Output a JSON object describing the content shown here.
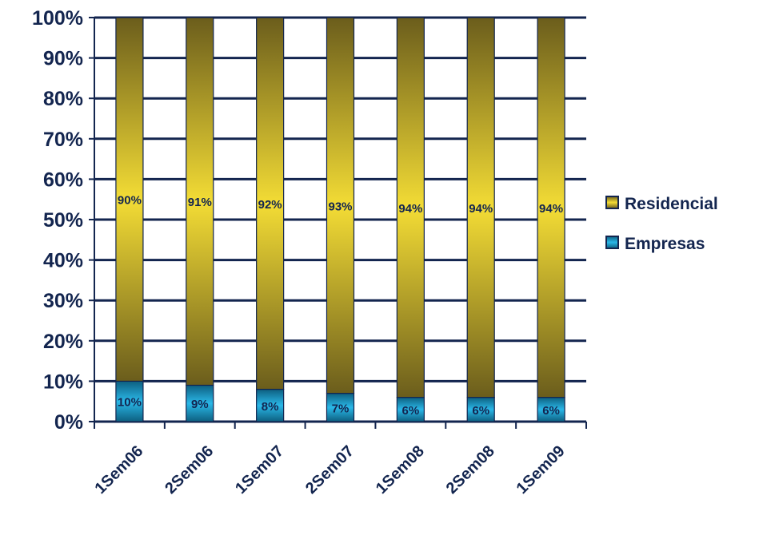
{
  "chart_data": {
    "type": "bar",
    "stacked": true,
    "percent_stacked": true,
    "categories": [
      "1Sem06",
      "2Sem06",
      "1Sem07",
      "2Sem07",
      "1Sem08",
      "2Sem08",
      "1Sem09"
    ],
    "series": [
      {
        "name": "Empresas",
        "values": [
          10,
          9,
          8,
          7,
          6,
          6,
          6
        ],
        "labels": [
          "10%",
          "9%",
          "8%",
          "7%",
          "6%",
          "6%",
          "6%"
        ]
      },
      {
        "name": "Residencial",
        "values": [
          90,
          91,
          92,
          93,
          94,
          94,
          94
        ],
        "labels": [
          "90%",
          "91%",
          "92%",
          "93%",
          "94%",
          "94%",
          "94%"
        ]
      }
    ],
    "ylim": [
      0,
      100
    ],
    "yticks": [
      "0%",
      "10%",
      "20%",
      "30%",
      "40%",
      "50%",
      "60%",
      "70%",
      "80%",
      "90%",
      "100%"
    ],
    "grid": true,
    "legend": {
      "position": "right",
      "entries": [
        "Residencial",
        "Empresas"
      ]
    },
    "colors": {
      "Residencial_mid": "#f3dc35",
      "Residencial_edge": "#6b5d1c",
      "Empresas_mid": "#2ab8e8",
      "Empresas_edge": "#0d5f80",
      "grid": "#13254f",
      "text": "#13254f"
    }
  }
}
